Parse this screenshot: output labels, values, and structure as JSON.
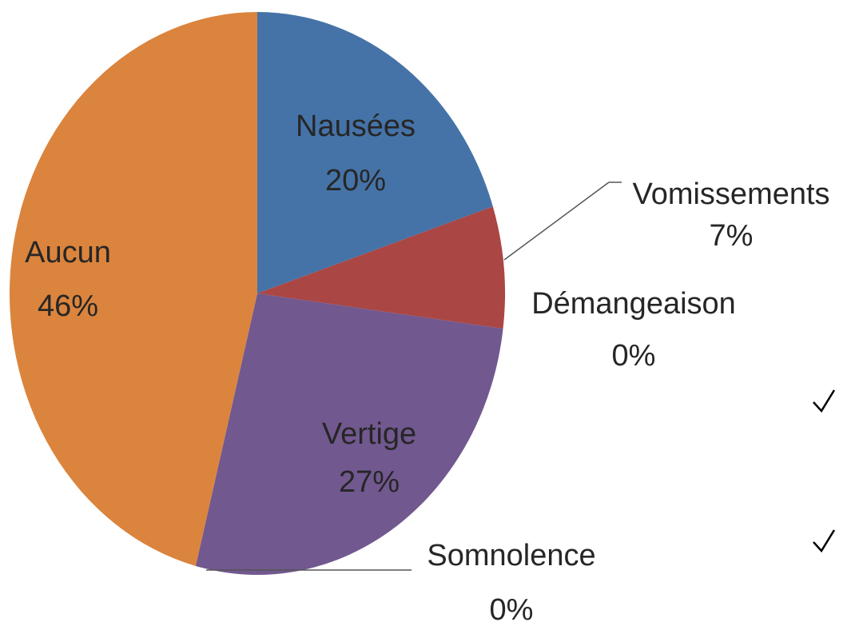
{
  "chart_data": {
    "type": "pie",
    "categories": [
      "Nausées",
      "Vomissements",
      "Démangeaison",
      "Vertige",
      "Somnolence",
      "Aucun"
    ],
    "values": [
      20,
      7,
      0,
      27,
      0,
      46
    ],
    "value_labels": [
      "20%",
      "7%",
      "0%",
      "27%",
      "0%",
      "46%"
    ],
    "colors": [
      "#4573a7",
      "#aa4644",
      "#89a54e",
      "#71588f",
      "#4198af",
      "#db843d"
    ]
  }
}
